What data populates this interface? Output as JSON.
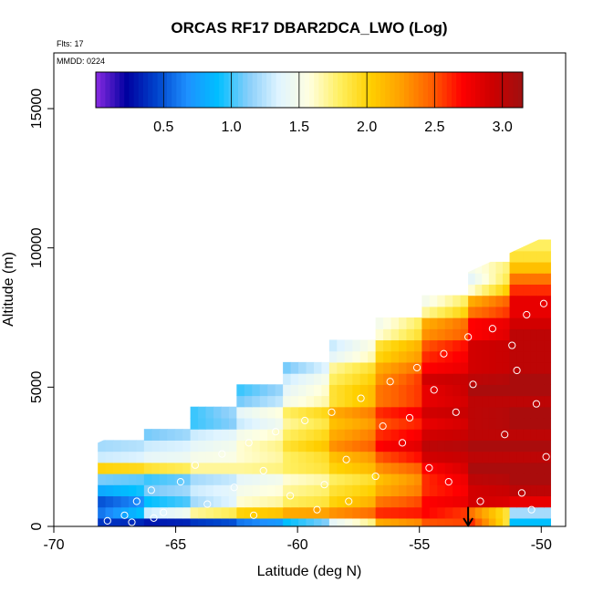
{
  "chart_data": {
    "type": "heatmap",
    "title": "ORCAS RF17 DBAR2DCA_LWO (Log)",
    "flights_label": "Flts: 17",
    "date_label": "MMDD: 0224",
    "xlabel": "Latitude (deg N)",
    "ylabel": "Altitude (m)",
    "xlim": [
      -70,
      -49
    ],
    "ylim": [
      0,
      17000
    ],
    "x_ticks": [
      -70,
      -65,
      -60,
      -55,
      -50
    ],
    "x_tick_labels": [
      "-70",
      "-65",
      "-60",
      "-55",
      "-50"
    ],
    "y_ticks": [
      0,
      5000,
      10000,
      15000
    ],
    "y_tick_labels": [
      "0",
      "5000",
      "10000",
      "15000"
    ],
    "colorbar": {
      "min": 0.0,
      "max": 3.15,
      "ticks": [
        0.5,
        1.0,
        1.5,
        2.0,
        2.5,
        3.0
      ],
      "tick_labels": [
        "0.5",
        "1.0",
        "1.5",
        "2.0",
        "2.5",
        "3.0"
      ],
      "colors": [
        "#8a2be2",
        "#0000a0",
        "#0044cc",
        "#1e90ff",
        "#00bfff",
        "#87cefa",
        "#e0f4ff",
        "#ffffe0",
        "#ffef60",
        "#ffd000",
        "#ffa000",
        "#ff6000",
        "#ff0000",
        "#cc0000",
        "#a01010"
      ]
    },
    "envelope": {
      "description": "cloud of log10 values between lower limit latitude and slant upper boundary",
      "lat_left": -68.2,
      "lat_right": -49.6,
      "alt_top_left": 3000,
      "alt_top_right": 10500
    },
    "layers": [
      {
        "alt": 100,
        "values": [
          0.4,
          0.3,
          0.4,
          0.6,
          0.9,
          1.4,
          2.2,
          2.5,
          2.6,
          0.9
        ]
      },
      {
        "alt": 500,
        "values": [
          0.6,
          1.3,
          1.7,
          2.0,
          2.2,
          2.3,
          2.6,
          2.7,
          2.4,
          1.2
        ]
      },
      {
        "alt": 900,
        "values": [
          0.5,
          0.9,
          1.2,
          1.6,
          1.8,
          2.0,
          2.4,
          2.7,
          2.9,
          2.8
        ]
      },
      {
        "alt": 1300,
        "values": [
          0.8,
          1.1,
          1.3,
          1.5,
          1.7,
          1.9,
          2.2,
          2.6,
          2.9,
          3.0
        ]
      },
      {
        "alt": 1700,
        "values": [
          1.1,
          1.0,
          1.2,
          1.4,
          1.6,
          1.8,
          2.1,
          2.6,
          3.0,
          3.1
        ]
      },
      {
        "alt": 2100,
        "values": [
          2.0,
          1.9,
          1.7,
          1.7,
          1.8,
          2.0,
          2.3,
          2.7,
          3.1,
          3.1
        ]
      },
      {
        "alt": 2500,
        "values": [
          1.3,
          1.4,
          1.5,
          1.6,
          1.8,
          2.1,
          2.5,
          2.9,
          3.0,
          3.0
        ]
      },
      {
        "alt": 2900,
        "values": [
          1.2,
          1.3,
          1.4,
          1.6,
          1.9,
          2.3,
          2.7,
          3.0,
          3.1,
          3.1
        ]
      },
      {
        "alt": 3300,
        "values": [
          null,
          1.1,
          1.3,
          1.5,
          1.8,
          2.2,
          2.6,
          2.9,
          3.0,
          3.0
        ]
      },
      {
        "alt": 3700,
        "values": [
          null,
          null,
          1.0,
          1.3,
          1.7,
          2.1,
          2.5,
          2.8,
          3.0,
          3.1
        ]
      },
      {
        "alt": 4100,
        "values": [
          null,
          null,
          1.0,
          1.4,
          1.8,
          2.2,
          2.6,
          2.9,
          3.0,
          3.1
        ]
      },
      {
        "alt": 4500,
        "values": [
          null,
          null,
          null,
          1.1,
          1.5,
          1.9,
          2.4,
          2.8,
          3.0,
          3.0
        ]
      },
      {
        "alt": 4900,
        "values": [
          null,
          null,
          null,
          1.0,
          1.4,
          1.9,
          2.4,
          2.8,
          3.1,
          3.1
        ]
      },
      {
        "alt": 5300,
        "values": [
          null,
          null,
          null,
          null,
          1.3,
          1.8,
          2.3,
          2.9,
          3.0,
          3.1
        ]
      },
      {
        "alt": 5700,
        "values": [
          null,
          null,
          null,
          null,
          1.1,
          1.7,
          2.2,
          2.7,
          2.9,
          3.0
        ]
      },
      {
        "alt": 6100,
        "values": [
          null,
          null,
          null,
          null,
          null,
          1.4,
          2.0,
          2.6,
          2.9,
          3.0
        ]
      },
      {
        "alt": 6500,
        "values": [
          null,
          null,
          null,
          null,
          null,
          1.3,
          1.9,
          2.5,
          2.9,
          3.0
        ]
      },
      {
        "alt": 6900,
        "values": [
          null,
          null,
          null,
          null,
          null,
          null,
          1.6,
          2.3,
          2.7,
          3.0
        ]
      },
      {
        "alt": 7300,
        "values": [
          null,
          null,
          null,
          null,
          null,
          null,
          1.5,
          2.2,
          2.7,
          2.9
        ]
      },
      {
        "alt": 7700,
        "values": [
          null,
          null,
          null,
          null,
          null,
          null,
          null,
          1.7,
          2.4,
          2.8
        ]
      },
      {
        "alt": 8100,
        "values": [
          null,
          null,
          null,
          null,
          null,
          null,
          null,
          1.5,
          2.2,
          2.8
        ]
      },
      {
        "alt": 8500,
        "values": [
          null,
          null,
          null,
          null,
          null,
          null,
          null,
          null,
          1.6,
          2.6
        ]
      },
      {
        "alt": 8900,
        "values": [
          null,
          null,
          null,
          null,
          null,
          null,
          null,
          null,
          1.4,
          2.4
        ]
      },
      {
        "alt": 9300,
        "values": [
          null,
          null,
          null,
          null,
          null,
          null,
          null,
          null,
          1.5,
          2.1
        ]
      },
      {
        "alt": 9700,
        "values": [
          null,
          null,
          null,
          null,
          null,
          null,
          null,
          null,
          null,
          1.9
        ]
      },
      {
        "alt": 10100,
        "values": [
          null,
          null,
          null,
          null,
          null,
          null,
          null,
          null,
          null,
          1.8
        ]
      }
    ],
    "layer_lat_edges": [
      -68.2,
      -66.3,
      -64.4,
      -62.5,
      -60.6,
      -58.7,
      -56.8,
      -54.9,
      -53.0,
      -51.3,
      -49.6
    ],
    "arrow_lat": -53.0,
    "samples": [
      [
        -67.8,
        200
      ],
      [
        -67.1,
        400
      ],
      [
        -66.6,
        900
      ],
      [
        -66.0,
        1300
      ],
      [
        -65.5,
        500
      ],
      [
        -64.8,
        1600
      ],
      [
        -64.2,
        2200
      ],
      [
        -63.7,
        800
      ],
      [
        -63.1,
        2600
      ],
      [
        -62.6,
        1400
      ],
      [
        -62.0,
        3000
      ],
      [
        -61.4,
        2000
      ],
      [
        -60.9,
        3400
      ],
      [
        -60.3,
        1100
      ],
      [
        -59.7,
        3800
      ],
      [
        -59.2,
        600
      ],
      [
        -58.6,
        4100
      ],
      [
        -58.0,
        2400
      ],
      [
        -57.4,
        4600
      ],
      [
        -56.8,
        1800
      ],
      [
        -56.2,
        5200
      ],
      [
        -55.7,
        3000
      ],
      [
        -55.1,
        5700
      ],
      [
        -54.6,
        2100
      ],
      [
        -54.0,
        6200
      ],
      [
        -53.5,
        4100
      ],
      [
        -53.0,
        6800
      ],
      [
        -52.5,
        900
      ],
      [
        -52.0,
        7100
      ],
      [
        -51.5,
        3300
      ],
      [
        -51.0,
        5600
      ],
      [
        -50.6,
        7600
      ],
      [
        -50.2,
        4400
      ],
      [
        -49.9,
        8000
      ],
      [
        -49.8,
        2500
      ],
      [
        -50.4,
        600
      ],
      [
        -66.8,
        150
      ],
      [
        -65.9,
        300
      ],
      [
        -61.8,
        400
      ],
      [
        -58.9,
        1500
      ],
      [
        -56.5,
        3600
      ],
      [
        -54.4,
        4900
      ],
      [
        -52.8,
        5100
      ],
      [
        -51.2,
        6500
      ],
      [
        -50.8,
        1200
      ],
      [
        -53.8,
        1600
      ],
      [
        -55.4,
        3900
      ],
      [
        -57.9,
        900
      ]
    ]
  }
}
